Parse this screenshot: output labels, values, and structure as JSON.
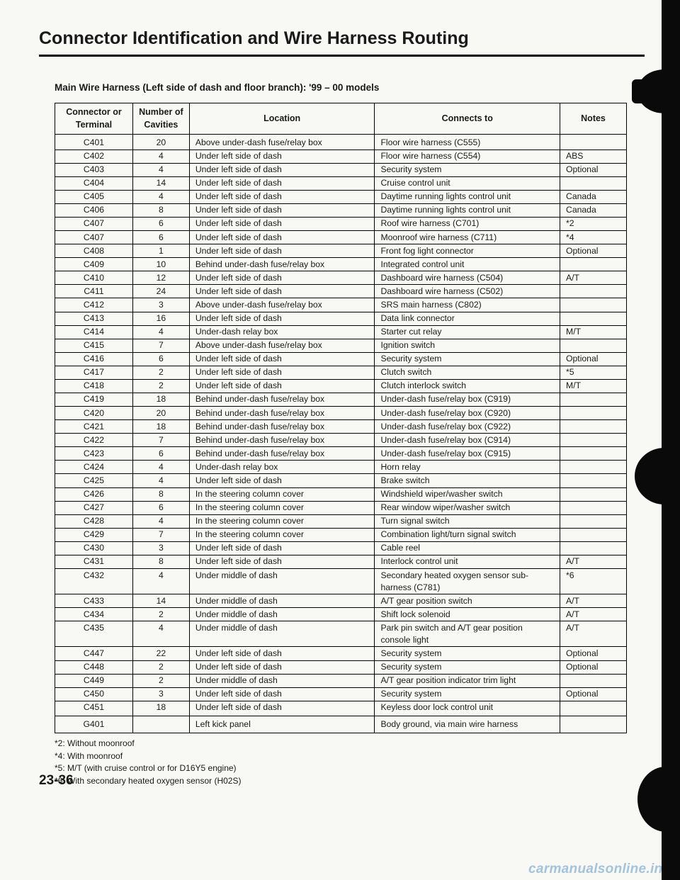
{
  "title": "Connector Identification and Wire Harness Routing",
  "subtitle": "Main Wire Harness (Left side of dash and floor branch): '99 – 00 models",
  "columns": [
    "Connector or Terminal",
    "Number of Cavities",
    "Location",
    "Connects to",
    "Notes"
  ],
  "rows": [
    [
      "C401",
      "20",
      "Above under-dash fuse/relay box",
      "Floor wire harness (C555)",
      ""
    ],
    [
      "C402",
      "4",
      "Under left side of dash",
      "Floor wire harness (C554)",
      "ABS"
    ],
    [
      "C403",
      "4",
      "Under left side of dash",
      "Security system",
      "Optional"
    ],
    [
      "C404",
      "14",
      "Under left side of dash",
      "Cruise control unit",
      ""
    ],
    [
      "C405",
      "4",
      "Under left side of dash",
      "Daytime running lights control unit",
      "Canada"
    ],
    [
      "C406",
      "8",
      "Under left side of dash",
      "Daytime running lights control unit",
      "Canada"
    ],
    [
      "C407",
      "6",
      "Under left side of dash",
      "Roof wire harness (C701)",
      "*2"
    ],
    [
      "C407",
      "6",
      "Under left side of dash",
      "Moonroof wire harness (C711)",
      "*4"
    ],
    [
      "C408",
      "1",
      "Under left side of dash",
      "Front fog light connector",
      "Optional"
    ],
    [
      "C409",
      "10",
      "Behind under-dash fuse/relay box",
      "Integrated control unit",
      ""
    ],
    [
      "C410",
      "12",
      "Under left side of dash",
      "Dashboard wire harness (C504)",
      "A/T"
    ],
    [
      "C411",
      "24",
      "Under left side of dash",
      "Dashboard wire harness (C502)",
      ""
    ],
    [
      "C412",
      "3",
      "Above under-dash fuse/relay box",
      "SRS main harness (C802)",
      ""
    ],
    [
      "C413",
      "16",
      "Under left side of dash",
      "Data link connector",
      ""
    ],
    [
      "C414",
      "4",
      "Under-dash relay box",
      "Starter cut relay",
      "M/T"
    ],
    [
      "C415",
      "7",
      "Above under-dash fuse/relay box",
      "Ignition switch",
      ""
    ],
    [
      "C416",
      "6",
      "Under left side of dash",
      "Security system",
      "Optional"
    ],
    [
      "C417",
      "2",
      "Under left side of dash",
      "Clutch switch",
      "*5"
    ],
    [
      "C418",
      "2",
      "Under left side of dash",
      "Clutch interlock switch",
      "M/T"
    ],
    [
      "C419",
      "18",
      "Behind under-dash fuse/relay box",
      "Under-dash fuse/relay box (C919)",
      ""
    ],
    [
      "C420",
      "20",
      "Behind under-dash fuse/relay box",
      "Under-dash fuse/relay box (C920)",
      ""
    ],
    [
      "C421",
      "18",
      "Behind under-dash fuse/relay box",
      "Under-dash fuse/relay box (C922)",
      ""
    ],
    [
      "C422",
      "7",
      "Behind under-dash fuse/relay box",
      "Under-dash fuse/relay box (C914)",
      ""
    ],
    [
      "C423",
      "6",
      "Behind under-dash fuse/relay box",
      "Under-dash fuse/relay box (C915)",
      ""
    ],
    [
      "C424",
      "4",
      "Under-dash relay box",
      "Horn relay",
      ""
    ],
    [
      "C425",
      "4",
      "Under left side of dash",
      "Brake switch",
      ""
    ],
    [
      "C426",
      "8",
      "In the steering column cover",
      "Windshield wiper/washer switch",
      ""
    ],
    [
      "C427",
      "6",
      "In the steering column cover",
      "Rear window wiper/washer switch",
      ""
    ],
    [
      "C428",
      "4",
      "In the steering column cover",
      "Turn signal switch",
      ""
    ],
    [
      "C429",
      "7",
      "In the steering column cover",
      "Combination light/turn signal switch",
      ""
    ],
    [
      "C430",
      "3",
      "Under left side of dash",
      "Cable reel",
      ""
    ],
    [
      "C431",
      "8",
      "Under left side of dash",
      "Interlock control unit",
      "A/T"
    ],
    [
      "C432",
      "4",
      "Under middle of dash",
      "Secondary heated oxygen sensor sub-harness (C781)",
      "*6"
    ],
    [
      "C433",
      "14",
      "Under middle of dash",
      "A/T gear position switch",
      "A/T"
    ],
    [
      "C434",
      "2",
      "Under middle of dash",
      "Shift lock solenoid",
      "A/T"
    ],
    [
      "C435",
      "4",
      "Under middle of dash",
      "Park pin switch and A/T gear position console light",
      "A/T"
    ],
    [
      "C447",
      "22",
      "Under left side of dash",
      "Security system",
      "Optional"
    ],
    [
      "C448",
      "2",
      "Under left side of dash",
      "Security system",
      "Optional"
    ],
    [
      "C449",
      "2",
      "Under middle of dash",
      "A/T gear position indicator trim light",
      ""
    ],
    [
      "C450",
      "3",
      "Under left side of dash",
      "Security system",
      "Optional"
    ],
    [
      "C451",
      "18",
      "Under left side of dash",
      "Keyless door lock control unit",
      ""
    ]
  ],
  "g_row": [
    "G401",
    "",
    "Left kick panel",
    "Body ground, via main wire harness",
    ""
  ],
  "footnotes": [
    "*2: Without moonroof",
    "*4: With moonroof",
    "*5: M/T (with cruise control or for D16Y5 engine)",
    "*6: With secondary heated oxygen sensor (H02S)"
  ],
  "pagenum": "23-36",
  "watermark": "carmanualsonline.info"
}
